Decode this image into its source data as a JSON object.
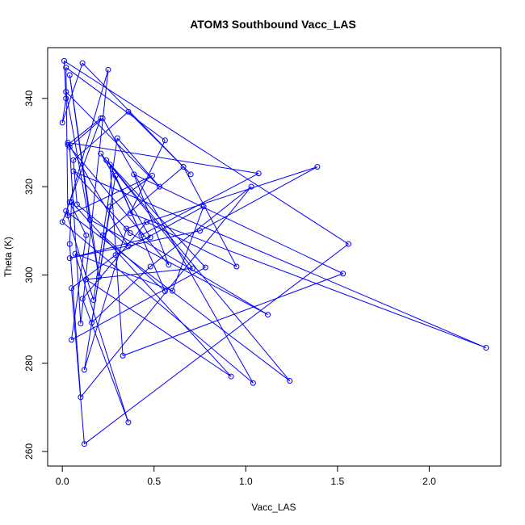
{
  "chart_data": {
    "type": "scatter",
    "title": "ATOM3 Southbound Vacc_LAS",
    "xlabel": "Vacc_LAS",
    "ylabel": "Theta (K)",
    "xlim": [
      -0.08,
      2.39
    ],
    "ylim": [
      256.7,
      351.5
    ],
    "xticks": [
      "0.0",
      "0.5",
      "1.0",
      "1.5",
      "2.0"
    ],
    "xtick_values": [
      0,
      0.5,
      1.0,
      1.5,
      2.0
    ],
    "yticks": [
      "260",
      "280",
      "300",
      "320",
      "340"
    ],
    "ytick_values": [
      260,
      280,
      300,
      320,
      340
    ],
    "grid": false,
    "legend": "none",
    "color": "#0000ff",
    "series": [
      {
        "marker": "open-circle",
        "connected": true,
        "points": [
          [
            0.01,
            348.5
          ],
          [
            0.02,
            347.0
          ],
          [
            0.04,
            345.3
          ],
          [
            0.11,
            348.0
          ],
          [
            0.25,
            346.5
          ],
          [
            0.02,
            340.0
          ],
          [
            0.02,
            341.5
          ],
          [
            0.0,
            334.5
          ],
          [
            0.21,
            335.5
          ],
          [
            0.22,
            335.5
          ],
          [
            0.36,
            337.0
          ],
          [
            0.03,
            330.0
          ],
          [
            0.03,
            329.5
          ],
          [
            0.04,
            329.0
          ],
          [
            0.3,
            331.0
          ],
          [
            0.56,
            330.5
          ],
          [
            0.06,
            326.0
          ],
          [
            0.24,
            326.0
          ],
          [
            0.21,
            327.5
          ],
          [
            0.26,
            325.0
          ],
          [
            0.66,
            324.5
          ],
          [
            0.7,
            322.8
          ],
          [
            0.49,
            322.5
          ],
          [
            0.06,
            323.5
          ],
          [
            1.07,
            323.0
          ],
          [
            1.39,
            324.5
          ],
          [
            0.39,
            322.8
          ],
          [
            0.29,
            322.5
          ],
          [
            0.53,
            320.0
          ],
          [
            1.03,
            320.0
          ],
          [
            0.04,
            316.5
          ],
          [
            0.05,
            316.5
          ],
          [
            0.08,
            316.0
          ],
          [
            0.26,
            315.5
          ],
          [
            0.77,
            315.5
          ],
          [
            0.02,
            314.5
          ],
          [
            0.03,
            313.5
          ],
          [
            0.37,
            314.0
          ],
          [
            0.15,
            312.5
          ],
          [
            0.46,
            312.0
          ],
          [
            0.0,
            312.0
          ],
          [
            0.35,
            310.5
          ],
          [
            0.75,
            310.0
          ],
          [
            0.37,
            309.5
          ],
          [
            0.43,
            309.0
          ],
          [
            0.48,
            308.5
          ],
          [
            0.22,
            309.0
          ],
          [
            0.13,
            309.0
          ],
          [
            1.56,
            307.0
          ],
          [
            0.04,
            307.0
          ],
          [
            0.36,
            306.5
          ],
          [
            0.07,
            304.8
          ],
          [
            0.04,
            303.8
          ],
          [
            0.29,
            304.5
          ],
          [
            0.71,
            301.5
          ],
          [
            0.58,
            302.3
          ],
          [
            0.48,
            301.9
          ],
          [
            0.78,
            301.7
          ],
          [
            0.95,
            301.9
          ],
          [
            1.53,
            300.3
          ],
          [
            0.2,
            299.5
          ],
          [
            0.13,
            299.0
          ],
          [
            0.05,
            297.0
          ],
          [
            0.56,
            296.3
          ],
          [
            0.6,
            296.4
          ],
          [
            0.17,
            294.3
          ],
          [
            0.11,
            294.6
          ],
          [
            1.12,
            291.0
          ],
          [
            0.1,
            289.0
          ],
          [
            0.16,
            289.2
          ],
          [
            0.05,
            285.3
          ],
          [
            2.31,
            283.5
          ],
          [
            0.33,
            281.7
          ],
          [
            0.12,
            278.5
          ],
          [
            0.92,
            277.0
          ],
          [
            1.04,
            275.5
          ],
          [
            1.24,
            276.0
          ],
          [
            0.1,
            272.3
          ],
          [
            0.36,
            266.6
          ],
          [
            0.12,
            261.7
          ]
        ],
        "path_order": [
          0,
          5,
          7,
          3,
          21,
          10,
          16,
          32,
          50,
          11,
          24,
          44,
          19,
          72,
          59,
          26,
          55,
          12,
          8,
          40,
          75,
          9,
          13,
          68,
          4,
          30,
          47,
          70,
          57,
          17,
          76,
          35,
          65,
          14,
          28,
          6,
          60,
          2,
          38,
          67,
          43,
          23,
          71,
          37,
          15,
          1,
          36,
          22,
          33,
          73,
          41,
          25,
          42,
          52,
          45,
          18,
          54,
          61,
          74,
          31,
          49,
          77,
          29,
          56,
          69,
          27,
          63,
          46,
          20,
          58,
          39,
          66,
          78,
          51,
          64,
          34,
          53,
          62,
          79,
          48,
          0
        ]
      }
    ]
  }
}
